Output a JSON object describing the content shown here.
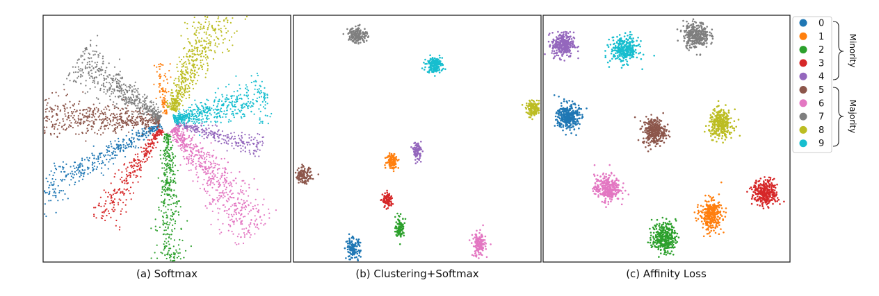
{
  "colors": {
    "0": "#1f77b4",
    "1": "#ff7f0e",
    "2": "#2ca02c",
    "3": "#d62728",
    "4": "#9467bd",
    "5": "#8c564b",
    "6": "#e377c2",
    "7": "#7f7f7f",
    "8": "#bcbd22",
    "9": "#17becf"
  },
  "legend": {
    "entries": [
      "0",
      "1",
      "2",
      "3",
      "4",
      "5",
      "6",
      "7",
      "8",
      "9"
    ],
    "groups": [
      {
        "label": "Minority",
        "classes": [
          "0",
          "1",
          "2",
          "3",
          "4"
        ]
      },
      {
        "label": "Majority",
        "classes": [
          "5",
          "6",
          "7",
          "8",
          "9"
        ]
      }
    ]
  },
  "chart_data": [
    {
      "type": "scatter",
      "caption": "(a) Softmax",
      "xlim": [
        0,
        100
      ],
      "ylim": [
        0,
        100
      ],
      "layout": "radial",
      "clusters": [
        {
          "class": "0",
          "angle": 209,
          "start": 3,
          "end": 68,
          "width": 6,
          "count": 420
        },
        {
          "class": "1",
          "angle": 97,
          "start": 3,
          "end": 24,
          "width": 3,
          "count": 90
        },
        {
          "class": "2",
          "angle": 271,
          "start": 5,
          "end": 58,
          "width": 5,
          "count": 380
        },
        {
          "class": "3",
          "angle": 236,
          "start": 4,
          "end": 49,
          "width": 5,
          "count": 300
        },
        {
          "class": "4",
          "angle": 345,
          "start": 4,
          "end": 40,
          "width": 4,
          "count": 260
        },
        {
          "class": "5",
          "angle": 177,
          "start": 3,
          "end": 58,
          "width": 8,
          "count": 600
        },
        {
          "class": "6",
          "angle": 310,
          "start": 4,
          "end": 58,
          "width": 9,
          "count": 650
        },
        {
          "class": "7",
          "angle": 146,
          "start": 3,
          "end": 44,
          "width": 7,
          "count": 500
        },
        {
          "class": "8",
          "angle": 66,
          "start": 5,
          "end": 60,
          "width": 9,
          "count": 650
        },
        {
          "class": "9",
          "angle": 14,
          "start": 3,
          "end": 42,
          "width": 7,
          "count": 500
        }
      ]
    },
    {
      "type": "scatter",
      "caption": "(b) Clustering+Softmax",
      "xlim": [
        0,
        100
      ],
      "ylim": [
        0,
        100
      ],
      "layout": "blobs",
      "clusters": [
        {
          "class": "0",
          "x": 24,
          "y": 5,
          "sx": 1.5,
          "sy": 2.4,
          "count": 130
        },
        {
          "class": "1",
          "x": 40,
          "y": 41,
          "sx": 1.2,
          "sy": 1.6,
          "count": 110
        },
        {
          "class": "2",
          "x": 43,
          "y": 14,
          "sx": 0.9,
          "sy": 2.0,
          "count": 110
        },
        {
          "class": "3",
          "x": 38,
          "y": 25,
          "sx": 1.0,
          "sy": 1.5,
          "count": 90
        },
        {
          "class": "4",
          "x": 50,
          "y": 45,
          "sx": 0.8,
          "sy": 1.8,
          "count": 90
        },
        {
          "class": "5",
          "x": 4,
          "y": 35,
          "sx": 1.7,
          "sy": 1.6,
          "count": 130
        },
        {
          "class": "6",
          "x": 75,
          "y": 7,
          "sx": 1.3,
          "sy": 2.4,
          "count": 160
        },
        {
          "class": "7",
          "x": 26,
          "y": 92,
          "sx": 1.9,
          "sy": 1.6,
          "count": 160
        },
        {
          "class": "8",
          "x": 97,
          "y": 62,
          "sx": 1.5,
          "sy": 1.4,
          "count": 140
        },
        {
          "class": "9",
          "x": 57,
          "y": 80,
          "sx": 1.6,
          "sy": 1.6,
          "count": 160
        }
      ]
    },
    {
      "type": "scatter",
      "caption": "(c) Affinity Loss",
      "xlim": [
        0,
        100
      ],
      "ylim": [
        0,
        100
      ],
      "layout": "blobs",
      "clusters": [
        {
          "class": "0",
          "x": 10,
          "y": 59,
          "sx": 2.3,
          "sy": 2.7,
          "count": 320
        },
        {
          "class": "1",
          "x": 68,
          "y": 19,
          "sx": 2.2,
          "sy": 3.1,
          "count": 320
        },
        {
          "class": "2",
          "x": 49,
          "y": 10,
          "sx": 2.4,
          "sy": 3.1,
          "count": 320
        },
        {
          "class": "3",
          "x": 90,
          "y": 28,
          "sx": 2.5,
          "sy": 2.6,
          "count": 320
        },
        {
          "class": "4",
          "x": 8,
          "y": 88,
          "sx": 2.2,
          "sy": 2.5,
          "count": 320
        },
        {
          "class": "5",
          "x": 45,
          "y": 53,
          "sx": 2.3,
          "sy": 2.7,
          "count": 320
        },
        {
          "class": "6",
          "x": 26,
          "y": 30,
          "sx": 2.6,
          "sy": 2.6,
          "count": 320
        },
        {
          "class": "7",
          "x": 62,
          "y": 92,
          "sx": 2.6,
          "sy": 2.6,
          "count": 320
        },
        {
          "class": "8",
          "x": 72,
          "y": 56,
          "sx": 2.4,
          "sy": 2.8,
          "count": 320
        },
        {
          "class": "9",
          "x": 33,
          "y": 86,
          "sx": 2.8,
          "sy": 2.6,
          "count": 320
        }
      ]
    }
  ]
}
